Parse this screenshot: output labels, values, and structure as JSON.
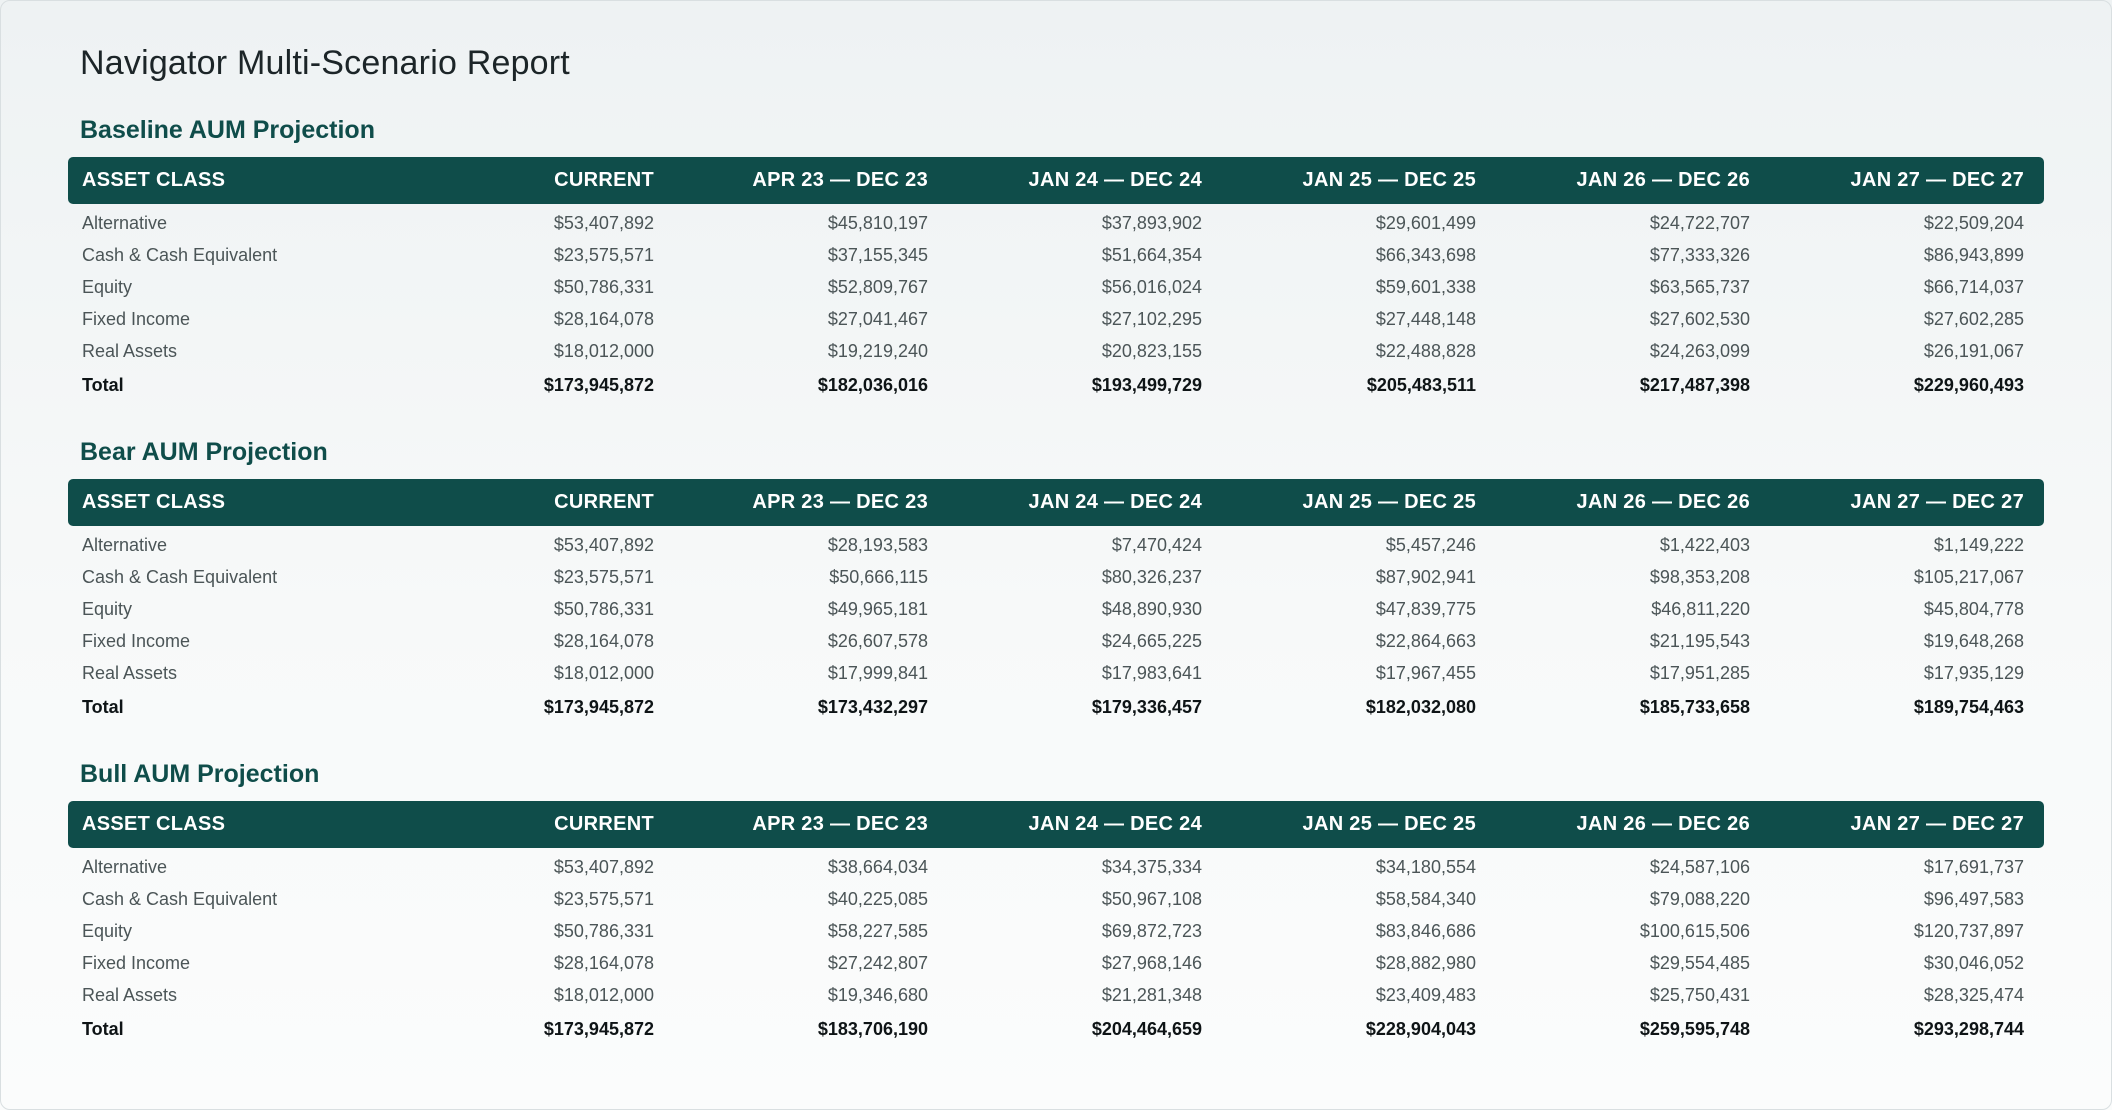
{
  "page_title": "Navigator Multi-Scenario Report",
  "columns": [
    "ASSET CLASS",
    "CURRENT",
    "APR 23 — DEC 23",
    "JAN 24 — DEC 24",
    "JAN 25 — DEC 25",
    "JAN 26 — DEC 26",
    "JAN 27 — DEC 27"
  ],
  "sections": [
    {
      "title": "Baseline AUM Projection",
      "rows": [
        {
          "label": "Alternative",
          "values": [
            "$53,407,892",
            "$45,810,197",
            "$37,893,902",
            "$29,601,499",
            "$24,722,707",
            "$22,509,204"
          ]
        },
        {
          "label": "Cash & Cash Equivalent",
          "values": [
            "$23,575,571",
            "$37,155,345",
            "$51,664,354",
            "$66,343,698",
            "$77,333,326",
            "$86,943,899"
          ]
        },
        {
          "label": "Equity",
          "values": [
            "$50,786,331",
            "$52,809,767",
            "$56,016,024",
            "$59,601,338",
            "$63,565,737",
            "$66,714,037"
          ]
        },
        {
          "label": "Fixed Income",
          "values": [
            "$28,164,078",
            "$27,041,467",
            "$27,102,295",
            "$27,448,148",
            "$27,602,530",
            "$27,602,285"
          ]
        },
        {
          "label": "Real Assets",
          "values": [
            "$18,012,000",
            "$19,219,240",
            "$20,823,155",
            "$22,488,828",
            "$24,263,099",
            "$26,191,067"
          ]
        }
      ],
      "total": {
        "label": "Total",
        "values": [
          "$173,945,872",
          "$182,036,016",
          "$193,499,729",
          "$205,483,511",
          "$217,487,398",
          "$229,960,493"
        ]
      }
    },
    {
      "title": "Bear AUM Projection",
      "rows": [
        {
          "label": "Alternative",
          "values": [
            "$53,407,892",
            "$28,193,583",
            "$7,470,424",
            "$5,457,246",
            "$1,422,403",
            "$1,149,222"
          ]
        },
        {
          "label": "Cash & Cash Equivalent",
          "values": [
            "$23,575,571",
            "$50,666,115",
            "$80,326,237",
            "$87,902,941",
            "$98,353,208",
            "$105,217,067"
          ]
        },
        {
          "label": "Equity",
          "values": [
            "$50,786,331",
            "$49,965,181",
            "$48,890,930",
            "$47,839,775",
            "$46,811,220",
            "$45,804,778"
          ]
        },
        {
          "label": "Fixed Income",
          "values": [
            "$28,164,078",
            "$26,607,578",
            "$24,665,225",
            "$22,864,663",
            "$21,195,543",
            "$19,648,268"
          ]
        },
        {
          "label": "Real Assets",
          "values": [
            "$18,012,000",
            "$17,999,841",
            "$17,983,641",
            "$17,967,455",
            "$17,951,285",
            "$17,935,129"
          ]
        }
      ],
      "total": {
        "label": "Total",
        "values": [
          "$173,945,872",
          "$173,432,297",
          "$179,336,457",
          "$182,032,080",
          "$185,733,658",
          "$189,754,463"
        ]
      }
    },
    {
      "title": "Bull AUM Projection",
      "rows": [
        {
          "label": "Alternative",
          "values": [
            "$53,407,892",
            "$38,664,034",
            "$34,375,334",
            "$34,180,554",
            "$24,587,106",
            "$17,691,737"
          ]
        },
        {
          "label": "Cash & Cash Equivalent",
          "values": [
            "$23,575,571",
            "$40,225,085",
            "$50,967,108",
            "$58,584,340",
            "$79,088,220",
            "$96,497,583"
          ]
        },
        {
          "label": "Equity",
          "values": [
            "$50,786,331",
            "$58,227,585",
            "$69,872,723",
            "$83,846,686",
            "$100,615,506",
            "$120,737,897"
          ]
        },
        {
          "label": "Fixed Income",
          "values": [
            "$28,164,078",
            "$27,242,807",
            "$27,968,146",
            "$28,882,980",
            "$29,554,485",
            "$30,046,052"
          ]
        },
        {
          "label": "Real Assets",
          "values": [
            "$18,012,000",
            "$19,346,680",
            "$21,281,348",
            "$23,409,483",
            "$25,750,431",
            "$28,325,474"
          ]
        }
      ],
      "total": {
        "label": "Total",
        "values": [
          "$173,945,872",
          "$183,706,190",
          "$204,464,659",
          "$228,904,043",
          "$259,595,748",
          "$293,298,744"
        ]
      }
    }
  ],
  "colors": {
    "header_bg": "#0f4d4a",
    "section_title": "#0f4d4a",
    "row_text": "#4b5557",
    "total_text": "#0e1416"
  }
}
